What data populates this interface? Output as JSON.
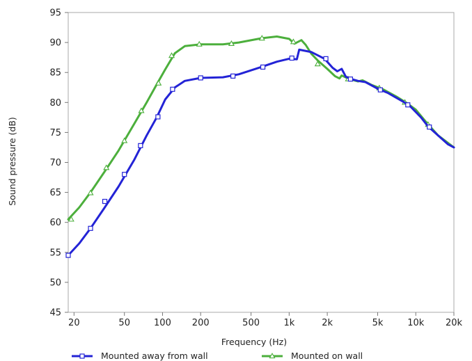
{
  "chart_data": {
    "type": "line",
    "xlabel": "Frequency  (Hz)",
    "ylabel": "Sound pressure  (dB)",
    "x_scale": "log",
    "xlim": [
      18,
      20000
    ],
    "ylim": [
      45,
      95
    ],
    "grid": false,
    "legend_position": "bottom",
    "x_ticks": [
      {
        "value": 20,
        "label": "20"
      },
      {
        "value": 50,
        "label": "50"
      },
      {
        "value": 100,
        "label": "100"
      },
      {
        "value": 200,
        "label": "200"
      },
      {
        "value": 500,
        "label": "500"
      },
      {
        "value": 1000,
        "label": "1k"
      },
      {
        "value": 2000,
        "label": "2k"
      },
      {
        "value": 5000,
        "label": "5k"
      },
      {
        "value": 10000,
        "label": "10k"
      },
      {
        "value": 20000,
        "label": "20k"
      }
    ],
    "y_ticks": [
      45,
      50,
      55,
      60,
      65,
      70,
      75,
      80,
      85,
      90,
      95
    ],
    "series": [
      {
        "name": "Mounted away from wall",
        "color": "#2323d6",
        "marker": "square",
        "points": [
          [
            18,
            54.5
          ],
          [
            22,
            56.5
          ],
          [
            27,
            59
          ],
          [
            35,
            62.5
          ],
          [
            45,
            66
          ],
          [
            60,
            70.5
          ],
          [
            75,
            74.5
          ],
          [
            90,
            77.5
          ],
          [
            105,
            80.5
          ],
          [
            125,
            82.5
          ],
          [
            150,
            83.6
          ],
          [
            200,
            84.1
          ],
          [
            300,
            84.2
          ],
          [
            400,
            84.7
          ],
          [
            600,
            85.9
          ],
          [
            800,
            86.8
          ],
          [
            1000,
            87.3
          ],
          [
            1150,
            87.2
          ],
          [
            1200,
            88.8
          ],
          [
            1500,
            88.4
          ],
          [
            1900,
            87.3
          ],
          [
            2200,
            85.8
          ],
          [
            2400,
            85.2
          ],
          [
            2600,
            85.6
          ],
          [
            2800,
            84.3
          ],
          [
            3100,
            83.9
          ],
          [
            3500,
            83.6
          ],
          [
            4000,
            83.4
          ],
          [
            5000,
            82.3
          ],
          [
            6000,
            81.6
          ],
          [
            7000,
            80.8
          ],
          [
            8000,
            80.1
          ],
          [
            9000,
            79.4
          ],
          [
            11000,
            77.5
          ],
          [
            12500,
            76
          ],
          [
            15000,
            74.5
          ],
          [
            18000,
            73
          ],
          [
            20000,
            72.5
          ]
        ],
        "markers": [
          [
            18,
            54.5
          ],
          [
            27,
            59
          ],
          [
            35,
            63.5
          ],
          [
            50,
            68
          ],
          [
            67,
            72.8
          ],
          [
            92,
            77.6
          ],
          [
            120,
            82.2
          ],
          [
            200,
            84.1
          ],
          [
            360,
            84.4
          ],
          [
            620,
            85.9
          ],
          [
            1050,
            87.4
          ],
          [
            1950,
            87.3
          ],
          [
            3050,
            83.9
          ],
          [
            5250,
            82.1
          ],
          [
            8650,
            79.6
          ],
          [
            12800,
            75.9
          ]
        ]
      },
      {
        "name": "Mounted on wall",
        "color": "#4caf3c",
        "marker": "triangle",
        "points": [
          [
            18,
            60.5
          ],
          [
            22,
            62.5
          ],
          [
            27,
            65
          ],
          [
            35,
            68.5
          ],
          [
            45,
            72
          ],
          [
            60,
            76.5
          ],
          [
            75,
            80
          ],
          [
            90,
            83
          ],
          [
            105,
            85.5
          ],
          [
            125,
            88.2
          ],
          [
            150,
            89.4
          ],
          [
            200,
            89.7
          ],
          [
            300,
            89.7
          ],
          [
            400,
            90
          ],
          [
            600,
            90.7
          ],
          [
            800,
            91
          ],
          [
            1000,
            90.6
          ],
          [
            1100,
            89.8
          ],
          [
            1250,
            90.4
          ],
          [
            1350,
            89.6
          ],
          [
            1500,
            88.1
          ],
          [
            1700,
            86.9
          ],
          [
            2000,
            85.6
          ],
          [
            2300,
            84.4
          ],
          [
            2500,
            84
          ],
          [
            2600,
            84.5
          ],
          [
            3000,
            83.9
          ],
          [
            3500,
            83.5
          ],
          [
            3800,
            83.7
          ],
          [
            4500,
            82.9
          ],
          [
            5500,
            82.2
          ],
          [
            7000,
            81
          ],
          [
            8500,
            79.9
          ],
          [
            10000,
            78.8
          ],
          [
            12000,
            76.8
          ],
          [
            15000,
            74.5
          ],
          [
            20000,
            72.5
          ]
        ],
        "markers": [
          [
            19,
            60.5
          ],
          [
            27,
            64.9
          ],
          [
            36,
            69.1
          ],
          [
            50,
            73.6
          ],
          [
            68,
            78.6
          ],
          [
            93,
            83.2
          ],
          [
            118,
            87.8
          ],
          [
            195,
            89.7
          ],
          [
            350,
            89.8
          ],
          [
            610,
            90.7
          ],
          [
            1080,
            90.1
          ],
          [
            1680,
            86.4
          ],
          [
            2920,
            83.9
          ],
          [
            5150,
            82.4
          ],
          [
            8200,
            80.0
          ],
          [
            12500,
            76.3
          ]
        ]
      }
    ]
  }
}
